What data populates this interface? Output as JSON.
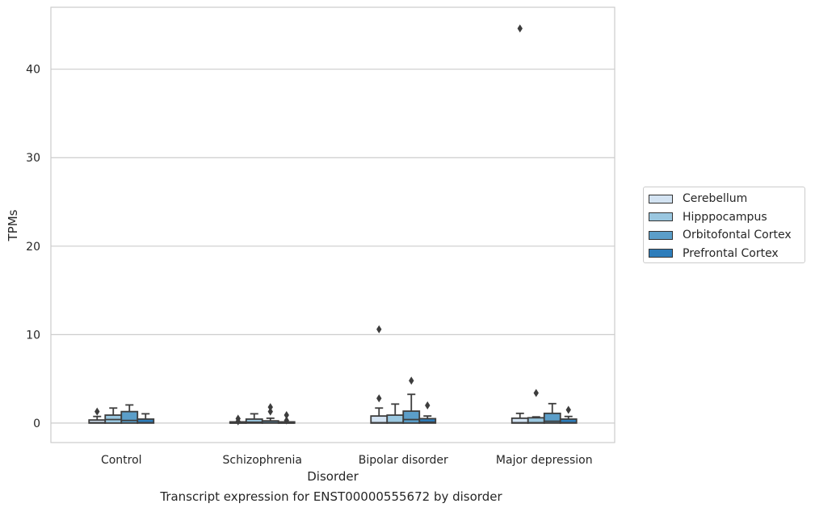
{
  "caption": "Transcript expression for ENST00000555672 by disorder",
  "chart_data": {
    "type": "box",
    "xlabel": "Disorder",
    "ylabel": "TPMs",
    "ylim": [
      -2.2,
      47.0
    ],
    "yticks": [
      0,
      10,
      20,
      30,
      40
    ],
    "grid": true,
    "legend_position": "right",
    "categories": [
      "Control",
      "Schizophrenia",
      "Bipolar disorder",
      "Major depression"
    ],
    "series": [
      {
        "name": "Cerebellum",
        "color": "#d3e3f2",
        "boxes": [
          {
            "q1": 0.0,
            "median": 0.05,
            "q3": 0.35,
            "whisker_low": 0.0,
            "whisker_high": 0.75,
            "outliers": [
              1.3
            ]
          },
          {
            "q1": 0.0,
            "median": 0.0,
            "q3": 0.05,
            "whisker_low": 0.0,
            "whisker_high": 0.1,
            "outliers": [
              0.2,
              0.5
            ]
          },
          {
            "q1": 0.0,
            "median": 0.05,
            "q3": 0.8,
            "whisker_low": 0.0,
            "whisker_high": 1.7,
            "outliers": [
              2.8,
              10.6
            ]
          },
          {
            "q1": 0.0,
            "median": 0.05,
            "q3": 0.55,
            "whisker_low": 0.0,
            "whisker_high": 1.1,
            "outliers": [
              44.6
            ]
          }
        ]
      },
      {
        "name": "Hipppocampus",
        "color": "#9ac7e0",
        "boxes": [
          {
            "q1": 0.0,
            "median": 0.4,
            "q3": 0.9,
            "whisker_low": 0.0,
            "whisker_high": 1.7,
            "outliers": []
          },
          {
            "q1": 0.0,
            "median": 0.1,
            "q3": 0.45,
            "whisker_low": 0.0,
            "whisker_high": 1.05,
            "outliers": []
          },
          {
            "q1": 0.0,
            "median": 0.05,
            "q3": 0.9,
            "whisker_low": 0.0,
            "whisker_high": 2.15,
            "outliers": []
          },
          {
            "q1": 0.0,
            "median": 0.05,
            "q3": 0.6,
            "whisker_low": 0.0,
            "whisker_high": 0.7,
            "outliers": [
              3.4
            ]
          }
        ]
      },
      {
        "name": "Orbitofontal Cortex",
        "color": "#5b9ec9",
        "boxes": [
          {
            "q1": 0.0,
            "median": 0.3,
            "q3": 1.3,
            "whisker_low": 0.0,
            "whisker_high": 2.05,
            "outliers": []
          },
          {
            "q1": 0.0,
            "median": 0.05,
            "q3": 0.25,
            "whisker_low": 0.0,
            "whisker_high": 0.55,
            "outliers": [
              1.3,
              1.8
            ]
          },
          {
            "q1": 0.0,
            "median": 0.4,
            "q3": 1.35,
            "whisker_low": 0.0,
            "whisker_high": 3.25,
            "outliers": [
              4.8
            ]
          },
          {
            "q1": 0.0,
            "median": 0.2,
            "q3": 1.1,
            "whisker_low": 0.0,
            "whisker_high": 2.2,
            "outliers": []
          }
        ]
      },
      {
        "name": "Prefrontal Cortex",
        "color": "#2d7dbb",
        "boxes": [
          {
            "q1": 0.0,
            "median": 0.05,
            "q3": 0.45,
            "whisker_low": 0.0,
            "whisker_high": 1.05,
            "outliers": []
          },
          {
            "q1": 0.0,
            "median": 0.0,
            "q3": 0.05,
            "whisker_low": 0.0,
            "whisker_high": 0.1,
            "outliers": [
              0.3,
              0.9
            ]
          },
          {
            "q1": 0.0,
            "median": 0.1,
            "q3": 0.5,
            "whisker_low": 0.0,
            "whisker_high": 0.8,
            "outliers": [
              2.0
            ]
          },
          {
            "q1": 0.0,
            "median": 0.05,
            "q3": 0.45,
            "whisker_low": 0.0,
            "whisker_high": 0.75,
            "outliers": [
              1.5
            ]
          }
        ]
      }
    ]
  }
}
